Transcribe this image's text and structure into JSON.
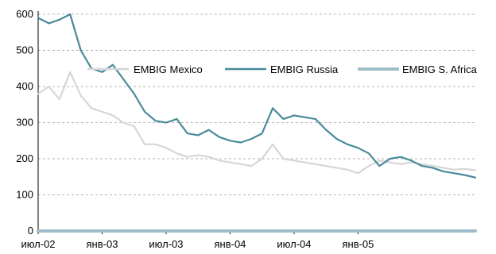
{
  "chart_data": {
    "type": "line",
    "title": "",
    "xlabel": "",
    "ylabel": "",
    "ylim": [
      0,
      600
    ],
    "yticks": [
      "0",
      "100",
      "200",
      "300",
      "400",
      "500",
      "600"
    ],
    "xlim": [
      "2002-07",
      "2005-12"
    ],
    "xticks": [
      {
        "date": "2002-07",
        "label": "июл-02"
      },
      {
        "date": "2003-01",
        "label": "янв-03"
      },
      {
        "date": "2003-07",
        "label": "июл-03"
      },
      {
        "date": "2004-01",
        "label": "янв-04"
      },
      {
        "date": "2004-07",
        "label": "июл-04"
      },
      {
        "date": "2005-01",
        "label": "янв-05"
      }
    ],
    "grid": "horizontal dashed",
    "legend": "top-right",
    "series": [
      {
        "name": "EMBIG Mexico",
        "color": "#d6d6d6",
        "points": [
          [
            "2002-07",
            380
          ],
          [
            "2002-08",
            400
          ],
          [
            "2002-09",
            365
          ],
          [
            "2002-10",
            440
          ],
          [
            "2002-11",
            375
          ],
          [
            "2002-12",
            340
          ],
          [
            "2003-01",
            330
          ],
          [
            "2003-02",
            320
          ],
          [
            "2003-03",
            300
          ],
          [
            "2003-04",
            290
          ],
          [
            "2003-05",
            240
          ],
          [
            "2003-06",
            240
          ],
          [
            "2003-07",
            230
          ],
          [
            "2003-08",
            215
          ],
          [
            "2003-09",
            205
          ],
          [
            "2003-10",
            210
          ],
          [
            "2003-11",
            205
          ],
          [
            "2003-12",
            195
          ],
          [
            "2004-01",
            190
          ],
          [
            "2004-02",
            185
          ],
          [
            "2004-03",
            180
          ],
          [
            "2004-04",
            200
          ],
          [
            "2004-05",
            240
          ],
          [
            "2004-06",
            200
          ],
          [
            "2004-07",
            195
          ],
          [
            "2004-08",
            190
          ],
          [
            "2004-09",
            185
          ],
          [
            "2004-10",
            180
          ],
          [
            "2004-11",
            175
          ],
          [
            "2004-12",
            170
          ],
          [
            "2005-01",
            160
          ],
          [
            "2005-02",
            180
          ],
          [
            "2005-03",
            195
          ],
          [
            "2005-04",
            190
          ],
          [
            "2005-05",
            185
          ],
          [
            "2005-06",
            190
          ],
          [
            "2005-07",
            185
          ],
          [
            "2005-08",
            180
          ],
          [
            "2005-09",
            175
          ],
          [
            "2005-10",
            170
          ],
          [
            "2005-11",
            172
          ],
          [
            "2005-12",
            168
          ]
        ]
      },
      {
        "name": "EMBIG Russia",
        "color": "#4a8a9a",
        "points": [
          [
            "2002-07",
            590
          ],
          [
            "2002-08",
            575
          ],
          [
            "2002-09",
            585
          ],
          [
            "2002-10",
            600
          ],
          [
            "2002-11",
            500
          ],
          [
            "2002-12",
            450
          ],
          [
            "2003-01",
            440
          ],
          [
            "2003-02",
            460
          ],
          [
            "2003-03",
            420
          ],
          [
            "2003-04",
            380
          ],
          [
            "2003-05",
            330
          ],
          [
            "2003-06",
            305
          ],
          [
            "2003-07",
            300
          ],
          [
            "2003-08",
            310
          ],
          [
            "2003-09",
            270
          ],
          [
            "2003-10",
            265
          ],
          [
            "2003-11",
            280
          ],
          [
            "2003-12",
            260
          ],
          [
            "2004-01",
            250
          ],
          [
            "2004-02",
            245
          ],
          [
            "2004-03",
            255
          ],
          [
            "2004-04",
            270
          ],
          [
            "2004-05",
            340
          ],
          [
            "2004-06",
            310
          ],
          [
            "2004-07",
            320
          ],
          [
            "2004-08",
            315
          ],
          [
            "2004-09",
            310
          ],
          [
            "2004-10",
            280
          ],
          [
            "2004-11",
            255
          ],
          [
            "2004-12",
            240
          ],
          [
            "2005-01",
            230
          ],
          [
            "2005-02",
            215
          ],
          [
            "2005-03",
            180
          ],
          [
            "2005-04",
            200
          ],
          [
            "2005-05",
            205
          ],
          [
            "2005-06",
            195
          ],
          [
            "2005-07",
            180
          ],
          [
            "2005-08",
            175
          ],
          [
            "2005-09",
            165
          ],
          [
            "2005-10",
            160
          ],
          [
            "2005-11",
            155
          ],
          [
            "2005-12",
            148
          ]
        ]
      },
      {
        "name": "EMBIG S. Africa",
        "color": "#9dbec8",
        "points": [
          [
            "2002-07",
            0
          ],
          [
            "2005-12",
            0
          ]
        ]
      }
    ]
  }
}
